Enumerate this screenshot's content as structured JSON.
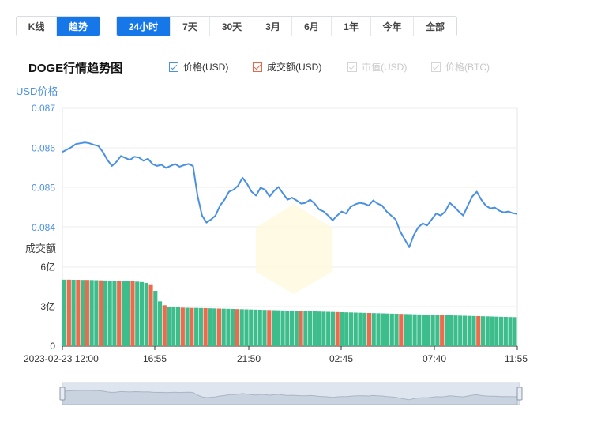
{
  "mode_tabs": [
    {
      "label": "K线",
      "active": false
    },
    {
      "label": "趋势",
      "active": true
    }
  ],
  "range_tabs": [
    {
      "label": "24小时",
      "active": true
    },
    {
      "label": "7天",
      "active": false
    },
    {
      "label": "30天",
      "active": false
    },
    {
      "label": "3月",
      "active": false
    },
    {
      "label": "6月",
      "active": false
    },
    {
      "label": "1年",
      "active": false
    },
    {
      "label": "今年",
      "active": false
    },
    {
      "label": "全部",
      "active": false
    }
  ],
  "chart_title": "DOGE行情趋势图",
  "legend": [
    {
      "label": "价格(USD)",
      "checked": true,
      "enabled": true,
      "color": "#4a90e2"
    },
    {
      "label": "成交额(USD)",
      "checked": true,
      "enabled": true,
      "color": "#e8664a"
    },
    {
      "label": "市值(USD)",
      "checked": true,
      "enabled": false,
      "color": "#d5d5d5"
    },
    {
      "label": "价格(BTC)",
      "checked": true,
      "enabled": false,
      "color": "#d5d5d5"
    }
  ],
  "colors": {
    "price_line": "#4a90e2",
    "volume_up": "#3dbd8c",
    "volume_down": "#ee6a4d",
    "axis_text_price": "#4a90e2",
    "axis_text_volume": "#333333"
  },
  "chart_data": {
    "type": "line",
    "price_axis": {
      "label": "USD价格",
      "ticks": [
        "0.087",
        "0.086",
        "0.085",
        "0.084"
      ],
      "ylim": [
        0.083,
        0.087
      ]
    },
    "volume_axis": {
      "label": "成交额",
      "ticks": [
        "6亿",
        "3亿",
        "0"
      ],
      "ylim": [
        0,
        600000000
      ]
    },
    "x_ticks": [
      "2023-02-23 12:00",
      "16:55",
      "21:50",
      "02:45",
      "07:40",
      "11:55"
    ],
    "price_series": {
      "name": "价格(USD)",
      "values": [
        0.0859,
        0.08596,
        0.08602,
        0.0861,
        0.08612,
        0.08614,
        0.08612,
        0.08608,
        0.08605,
        0.0859,
        0.0857,
        0.08555,
        0.08565,
        0.0858,
        0.08575,
        0.0857,
        0.08578,
        0.08576,
        0.08568,
        0.08573,
        0.0856,
        0.08555,
        0.08558,
        0.0855,
        0.08555,
        0.0856,
        0.08553,
        0.08557,
        0.0856,
        0.08555,
        0.0848,
        0.0843,
        0.08412,
        0.0842,
        0.0843,
        0.08455,
        0.0847,
        0.0849,
        0.08495,
        0.08505,
        0.08525,
        0.0851,
        0.0849,
        0.0848,
        0.085,
        0.08495,
        0.08478,
        0.08492,
        0.08502,
        0.08485,
        0.0847,
        0.08475,
        0.08468,
        0.0846,
        0.08462,
        0.0847,
        0.0846,
        0.08445,
        0.0844,
        0.0843,
        0.08418,
        0.0843,
        0.0844,
        0.08435,
        0.08452,
        0.08458,
        0.08462,
        0.0846,
        0.08455,
        0.08468,
        0.0846,
        0.08455,
        0.0844,
        0.0843,
        0.0842,
        0.0839,
        0.0837,
        0.0835,
        0.0838,
        0.084,
        0.0841,
        0.08405,
        0.0842,
        0.08435,
        0.0843,
        0.0844,
        0.08462,
        0.08452,
        0.0844,
        0.0843,
        0.08455,
        0.08478,
        0.0849,
        0.0847,
        0.08455,
        0.08448,
        0.0845,
        0.08442,
        0.08438,
        0.0844,
        0.08436,
        0.08434
      ]
    },
    "volume_series": {
      "name": "成交额(USD)",
      "values": [
        505000000,
        505000000,
        504000000,
        504000000,
        503000000,
        503000000,
        502000000,
        501000000,
        500000000,
        499000000,
        498000000,
        497000000,
        496000000,
        495000000,
        494000000,
        492000000,
        490000000,
        487000000,
        480000000,
        470000000,
        420000000,
        340000000,
        310000000,
        300000000,
        296000000,
        294000000,
        292000000,
        291000000,
        290000000,
        290000000,
        289000000,
        288000000,
        287000000,
        286000000,
        285000000,
        284000000,
        283000000,
        282000000,
        281000000,
        280000000,
        279000000,
        278000000,
        277000000,
        276000000,
        275000000,
        274000000,
        273000000,
        272000000,
        271000000,
        270000000,
        269000000,
        268000000,
        267000000,
        266000000,
        265000000,
        264000000,
        263000000,
        262000000,
        261000000,
        260000000,
        259000000,
        258000000,
        257000000,
        256000000,
        255000000,
        254000000,
        253000000,
        252000000,
        251000000,
        250000000,
        249000000,
        248000000,
        247000000,
        246000000,
        245000000,
        244000000,
        243000000,
        242000000,
        241000000,
        240000000,
        239000000,
        238000000,
        237000000,
        236000000,
        235000000,
        234000000,
        233000000,
        232000000,
        231000000,
        230000000,
        229000000,
        228000000,
        227000000,
        226000000,
        225000000,
        224000000,
        223000000,
        222000000,
        221000000,
        220000000
      ]
    },
    "legend_position": "top"
  }
}
